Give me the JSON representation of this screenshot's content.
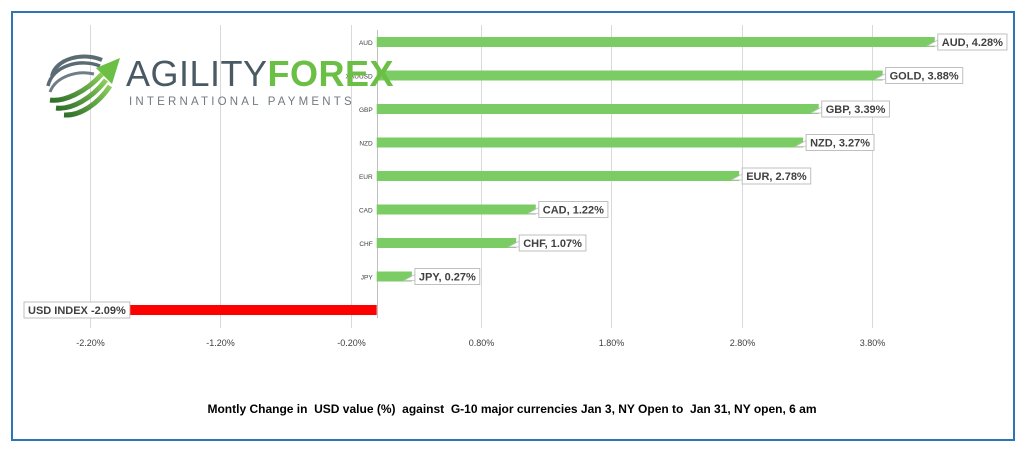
{
  "logo": {
    "word1": "AGILITY",
    "word2": "FOREX",
    "subtitle": "INTERNATIONAL PAYMENTS"
  },
  "footer": "Montly Change in  USD value (%)  against  G-10 major currencies Jan 3, NY Open to  Jan 31, NY open, 6 am",
  "colors": {
    "positive_bar": "#7ccc66",
    "negative_bar": "#ff0000",
    "frame": "#2e75b6"
  },
  "chart_data": {
    "type": "bar",
    "orientation": "horizontal",
    "title": "Montly Change in  USD value (%)  against  G-10 major currencies Jan 3, NY Open to  Jan 31, NY open, 6 am",
    "x_tick_labels": [
      "-2.20%",
      "-1.20%",
      "-0.20%",
      "0.80%",
      "1.80%",
      "2.80%",
      "3.80%"
    ],
    "x_ticks": [
      -2.2,
      -1.2,
      -0.2,
      0.8,
      1.8,
      2.8,
      3.8
    ],
    "xlim": [
      -2.72,
      4.78
    ],
    "grid": "vertical",
    "bars": [
      {
        "category": "AUD",
        "value": 4.28,
        "data_label": "AUD, 4.28%"
      },
      {
        "category": "XAUUSD",
        "value": 3.88,
        "data_label": "GOLD, 3.88%"
      },
      {
        "category": "GBP",
        "value": 3.39,
        "data_label": "GBP, 3.39%"
      },
      {
        "category": "NZD",
        "value": 3.27,
        "data_label": "NZD, 3.27%"
      },
      {
        "category": "EUR",
        "value": 2.78,
        "data_label": "EUR, 2.78%"
      },
      {
        "category": "CAD",
        "value": 1.22,
        "data_label": "CAD, 1.22%"
      },
      {
        "category": "CHF",
        "value": 1.07,
        "data_label": "CHF, 1.07%"
      },
      {
        "category": "JPY",
        "value": 0.27,
        "data_label": "JPY, 0.27%"
      },
      {
        "category": "USD INDEX",
        "value": -2.09,
        "data_label": "USD INDEX -2.09%"
      }
    ]
  }
}
